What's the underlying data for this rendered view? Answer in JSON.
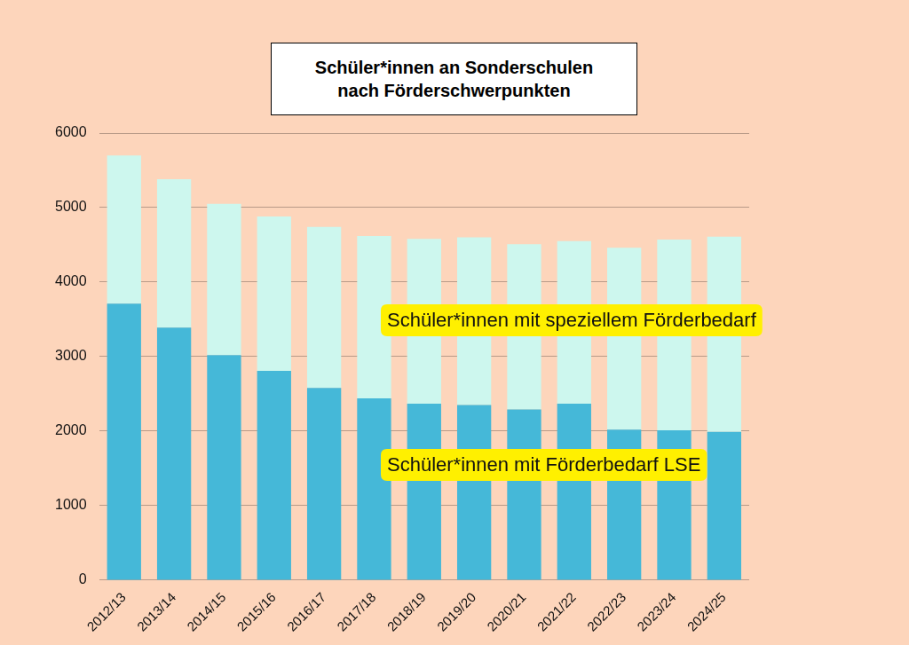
{
  "chart_data": {
    "type": "bar",
    "title": "Schüler*innen an Sonderschulen nach Förderschwerpunkten",
    "categories": [
      "2012/13",
      "2013/14",
      "2014/15",
      "2015/16",
      "2016/17",
      "2017/18",
      "2018/19",
      "2019/20",
      "2020/21",
      "2021/22",
      "2022/23",
      "2023/24",
      "2024/25"
    ],
    "series": [
      {
        "name": "Schüler*innen mit Förderbedarf LSE",
        "color": "#45b8d8",
        "values": [
          3710,
          3390,
          3020,
          2810,
          2580,
          2440,
          2370,
          2350,
          2290,
          2370,
          2020,
          2010,
          1990
        ]
      },
      {
        "name": "Schüler*innen mit speziellem Förderbedarf",
        "color": "#cdf7ee",
        "values": [
          1990,
          1990,
          2030,
          2070,
          2160,
          2180,
          2210,
          2250,
          2220,
          2180,
          2440,
          2560,
          2620
        ]
      }
    ],
    "stacked": true,
    "ylim": [
      0,
      6000
    ],
    "yticks": [
      0,
      1000,
      2000,
      3000,
      4000,
      5000,
      6000
    ],
    "grid": true
  }
}
